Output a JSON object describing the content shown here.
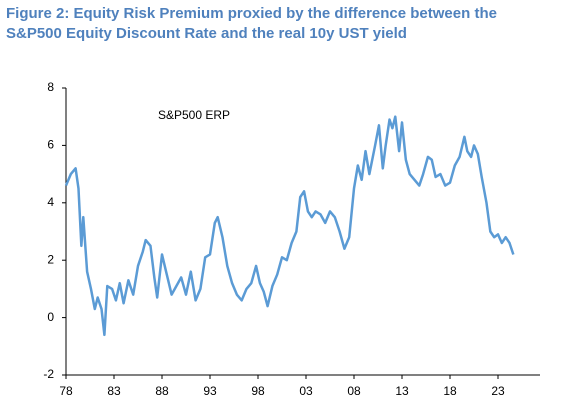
{
  "chart_data": {
    "type": "line",
    "title": "Figure 2: Equity Risk Premium proxied by the difference between the S&P500 Equity Discount Rate and the real 10y UST yield",
    "x": [
      1978,
      1978.5,
      1979,
      1979.3,
      1979.6,
      1979.8,
      1980.2,
      1980.6,
      1981,
      1981.3,
      1981.7,
      1982,
      1982.3,
      1982.8,
      1983.2,
      1983.6,
      1984,
      1984.5,
      1985,
      1985.5,
      1986,
      1986.3,
      1986.8,
      1987.2,
      1987.5,
      1988,
      1988.5,
      1989,
      1989.5,
      1990,
      1990.5,
      1991,
      1991.5,
      1992,
      1992.5,
      1993,
      1993.5,
      1993.8,
      1994.3,
      1994.8,
      1995.3,
      1995.8,
      1996.3,
      1996.8,
      1997.3,
      1997.8,
      1998.2,
      1998.6,
      1999,
      1999.5,
      2000,
      2000.5,
      2001,
      2001.5,
      2002,
      2002.4,
      2002.8,
      2003.2,
      2003.6,
      2004,
      2004.5,
      2005,
      2005.5,
      2006,
      2006.5,
      2007,
      2007.5,
      2008,
      2008.4,
      2008.8,
      2009.2,
      2009.6,
      2010.2,
      2010.6,
      2011,
      2011.3,
      2011.7,
      2012,
      2012.3,
      2012.7,
      2013,
      2013.4,
      2013.8,
      2014.3,
      2014.8,
      2015.2,
      2015.7,
      2016.1,
      2016.5,
      2017,
      2017.5,
      2018,
      2018.5,
      2019,
      2019.5,
      2019.8,
      2020.2,
      2020.5,
      2020.9,
      2021.3,
      2021.8,
      2022.2,
      2022.6,
      2023,
      2023.4,
      2023.8,
      2024.2,
      2024.6
    ],
    "series": [
      {
        "name": "S&P500 ERP",
        "color": "#5b9bd5",
        "values": [
          4.6,
          5.0,
          5.2,
          4.5,
          2.5,
          3.5,
          1.6,
          1.0,
          0.3,
          0.7,
          0.3,
          -0.6,
          1.1,
          1.0,
          0.6,
          1.2,
          0.5,
          1.3,
          0.8,
          1.8,
          2.3,
          2.7,
          2.5,
          1.4,
          0.7,
          2.2,
          1.5,
          0.8,
          1.1,
          1.4,
          0.8,
          1.6,
          0.6,
          1.0,
          2.1,
          2.2,
          3.3,
          3.5,
          2.8,
          1.8,
          1.2,
          0.8,
          0.6,
          1.0,
          1.2,
          1.8,
          1.2,
          0.9,
          0.4,
          1.1,
          1.5,
          2.1,
          2.0,
          2.6,
          3.0,
          4.2,
          4.4,
          3.7,
          3.5,
          3.7,
          3.6,
          3.3,
          3.7,
          3.5,
          3.0,
          2.4,
          2.8,
          4.5,
          5.3,
          4.8,
          5.8,
          5.0,
          6.0,
          6.7,
          5.2,
          6.0,
          6.9,
          6.6,
          7.0,
          5.8,
          6.8,
          5.5,
          5.0,
          4.8,
          4.6,
          5.0,
          5.6,
          5.5,
          4.9,
          5.0,
          4.6,
          4.7,
          5.3,
          5.6,
          6.3,
          5.8,
          5.6,
          6.0,
          5.7,
          4.9,
          4.0,
          3.0,
          2.8,
          2.9,
          2.6,
          2.8,
          2.6,
          2.2
        ]
      }
    ],
    "xlim": [
      1978,
      2025.5
    ],
    "xticks": [
      {
        "value": 1978,
        "label": "78"
      },
      {
        "value": 1983,
        "label": "83"
      },
      {
        "value": 1988,
        "label": "88"
      },
      {
        "value": 1993,
        "label": "93"
      },
      {
        "value": 1998,
        "label": "98"
      },
      {
        "value": 2003,
        "label": "03"
      },
      {
        "value": 2008,
        "label": "08"
      },
      {
        "value": 2013,
        "label": "13"
      },
      {
        "value": 2018,
        "label": "18"
      },
      {
        "value": 2023,
        "label": "23"
      }
    ],
    "ylim": [
      -2,
      8
    ],
    "yticks": [
      -2,
      0,
      2,
      4,
      6,
      8
    ]
  }
}
